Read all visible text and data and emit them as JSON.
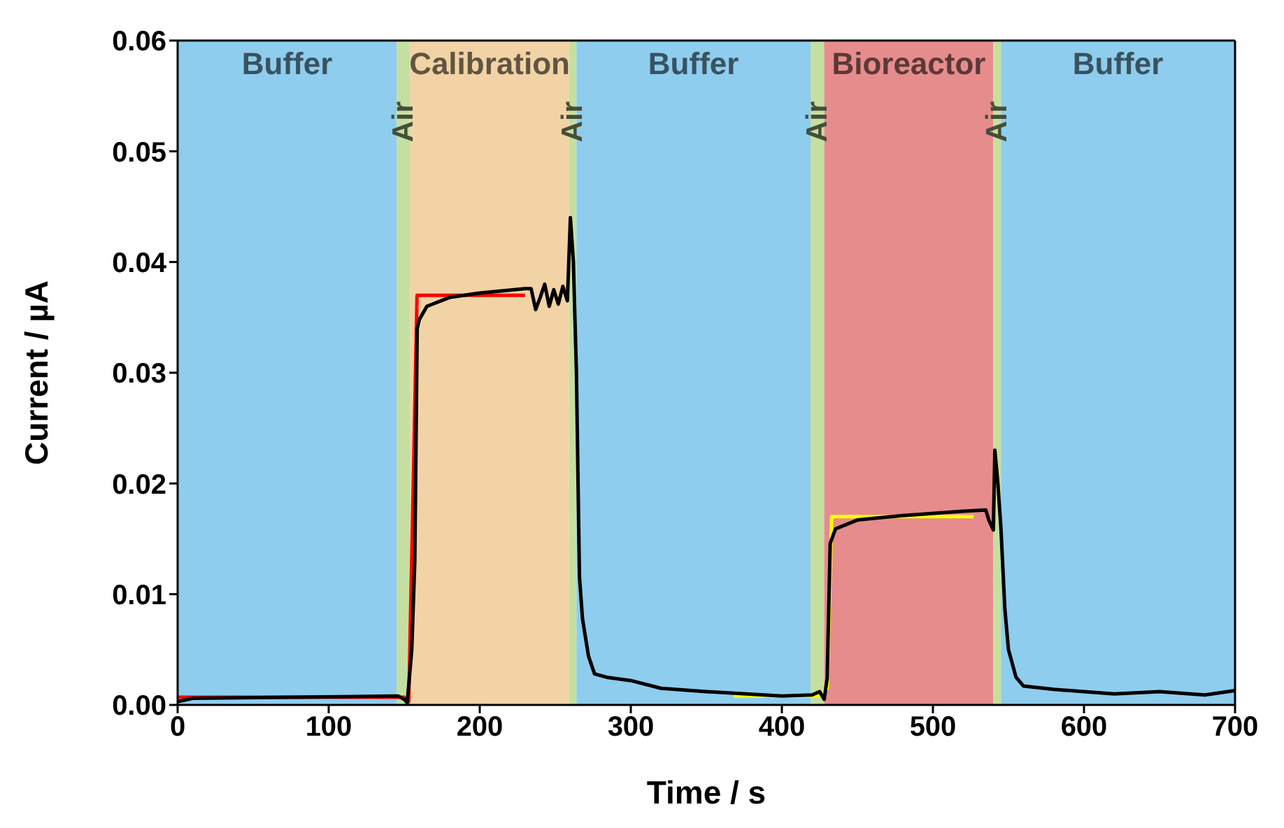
{
  "chart_data": {
    "type": "line",
    "xlabel": "Time / s",
    "ylabel": "Current / µA",
    "xlim": [
      0,
      700
    ],
    "xticks": [
      0,
      100,
      200,
      300,
      400,
      500,
      600,
      700
    ],
    "ylim": [
      0,
      0.06
    ],
    "yticks": [
      {
        "value": 0,
        "label": "0.00"
      },
      {
        "value": 0.01,
        "label": "0.01"
      },
      {
        "value": 0.02,
        "label": "0.02"
      },
      {
        "value": 0.03,
        "label": "0.03"
      },
      {
        "value": 0.04,
        "label": "0.04"
      },
      {
        "value": 0.05,
        "label": "0.05"
      },
      {
        "value": 0.06,
        "label": "0.06"
      }
    ],
    "marker": "none",
    "line_style": "solid",
    "bands": [
      {
        "axis": "x",
        "from": 0,
        "to": 145,
        "label": "Buffer",
        "color": "#8ecdee"
      },
      {
        "axis": "x",
        "from": 145,
        "to": 154,
        "label": "Air",
        "color": "#c5dfa0"
      },
      {
        "axis": "x",
        "from": 154,
        "to": 259,
        "label": "Calibration",
        "color": "#f2d3a5"
      },
      {
        "axis": "x",
        "from": 259,
        "to": 264,
        "label": "Air",
        "color": "#c5dfa0"
      },
      {
        "axis": "x",
        "from": 264,
        "to": 419,
        "label": "Buffer",
        "color": "#8ecdee"
      },
      {
        "axis": "x",
        "from": 419,
        "to": 428,
        "label": "Air",
        "color": "#c5dfa0"
      },
      {
        "axis": "x",
        "from": 428,
        "to": 540,
        "label": "Bioreactor",
        "color": "#e68c8c"
      },
      {
        "axis": "x",
        "from": 540,
        "to": 545,
        "label": "Air",
        "color": "#c5dfa0"
      },
      {
        "axis": "x",
        "from": 545,
        "to": 700,
        "label": "Buffer",
        "color": "#8ecdee"
      }
    ],
    "series": [
      {
        "color": "#ff0000",
        "x": [
          0,
          150,
          153,
          156,
          158.5,
          230
        ],
        "values": [
          0.0007,
          0.0007,
          0.0003,
          0.02,
          0.037,
          0.037
        ]
      },
      {
        "color": "#ffff00",
        "x": [
          368,
          425,
          430,
          433,
          527
        ],
        "values": [
          0.0008,
          0.0008,
          0.0015,
          0.017,
          0.017
        ]
      },
      {
        "color": "#000000",
        "x": [
          0,
          10,
          146,
          150,
          152,
          155,
          157,
          158.6,
          160,
          165,
          180,
          200,
          230,
          234,
          237,
          240,
          243,
          246,
          249,
          252,
          255,
          258,
          260,
          262,
          264,
          266,
          268,
          272,
          276,
          284,
          300,
          320,
          350,
          400,
          420,
          425,
          428,
          430,
          432,
          435.5,
          450,
          480,
          520,
          535,
          537,
          540,
          541,
          543,
          545,
          547.6,
          550,
          555,
          560,
          580,
          600,
          620,
          650,
          680,
          700
        ],
        "values": [
          0.0003,
          0.0006,
          0.0008,
          0.0005,
          0.0002,
          0.005,
          0.013,
          0.034,
          0.0348,
          0.036,
          0.0368,
          0.0372,
          0.0376,
          0.0376,
          0.0357,
          0.0368,
          0.038,
          0.036,
          0.0375,
          0.0362,
          0.0378,
          0.0365,
          0.044,
          0.04,
          0.03,
          0.0116,
          0.0078,
          0.0044,
          0.0028,
          0.0025,
          0.0022,
          0.0015,
          0.0012,
          0.0008,
          0.0009,
          0.0012,
          0.0005,
          0.0024,
          0.0146,
          0.0159,
          0.0167,
          0.0171,
          0.0175,
          0.0176,
          0.0167,
          0.0158,
          0.023,
          0.02,
          0.016,
          0.0087,
          0.005,
          0.0025,
          0.0017,
          0.0014,
          0.0012,
          0.001,
          0.0012,
          0.0009,
          0.0013
        ]
      }
    ]
  }
}
